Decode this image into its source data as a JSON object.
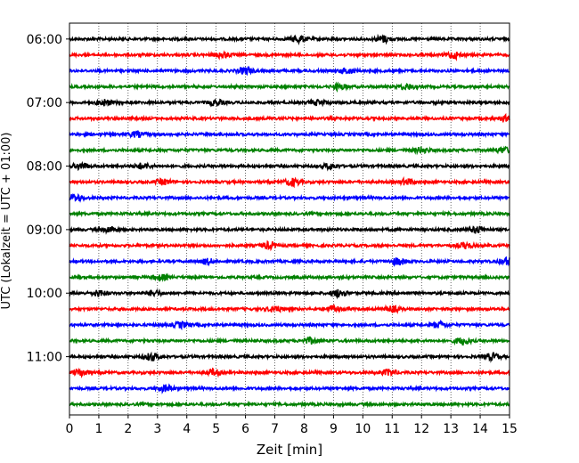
{
  "chart_data": {
    "type": "line",
    "title": "",
    "xlabel": "Zeit  [min]",
    "ylabel": "UTC (Lokalzeit = UTC + 01:00)",
    "xlim": [
      0,
      15
    ],
    "x_ticks": [
      0,
      1,
      2,
      3,
      4,
      5,
      6,
      7,
      8,
      9,
      10,
      11,
      12,
      13,
      14,
      15
    ],
    "y_ticks": [
      "06:00",
      "07:00",
      "08:00",
      "09:00",
      "10:00",
      "11:00"
    ],
    "ylim": [
      "05:45",
      "11:55"
    ],
    "grid": "vertical dotted at each minute",
    "trace_interval_min": 15,
    "trace_colors": [
      "#000000",
      "#ff0000",
      "#0000ff",
      "#008000"
    ],
    "traces": [
      {
        "start": "06:00",
        "color": "#000000",
        "events": [
          [
            7.8,
            1.6
          ],
          [
            10.7,
            1.5
          ]
        ]
      },
      {
        "start": "06:15",
        "color": "#ff0000",
        "events": [
          [
            5.2,
            1.3
          ],
          [
            13.1,
            1.6
          ]
        ]
      },
      {
        "start": "06:30",
        "color": "#0000ff",
        "events": [
          [
            6.0,
            1.5
          ],
          [
            9.5,
            1.2
          ]
        ]
      },
      {
        "start": "06:45",
        "color": "#008000",
        "events": [
          [
            9.2,
            1.3
          ],
          [
            11.5,
            1.3
          ]
        ]
      },
      {
        "start": "07:00",
        "color": "#000000",
        "events": [
          [
            1.2,
            1.4
          ],
          [
            5.0,
            1.3
          ],
          [
            8.5,
            1.2
          ]
        ]
      },
      {
        "start": "07:15",
        "color": "#ff0000",
        "events": [
          [
            14.9,
            1.2
          ]
        ]
      },
      {
        "start": "07:30",
        "color": "#0000ff",
        "events": [
          [
            2.3,
            1.3
          ]
        ]
      },
      {
        "start": "07:45",
        "color": "#008000",
        "events": [
          [
            12.0,
            1.3
          ],
          [
            14.8,
            1.2
          ]
        ]
      },
      {
        "start": "08:00",
        "color": "#000000",
        "events": [
          [
            0.4,
            1.5
          ],
          [
            2.5,
            1.3
          ],
          [
            8.9,
            1.3
          ]
        ]
      },
      {
        "start": "08:15",
        "color": "#ff0000",
        "events": [
          [
            7.6,
            1.7
          ],
          [
            3.2,
            1.2
          ],
          [
            11.5,
            1.3
          ]
        ]
      },
      {
        "start": "08:30",
        "color": "#0000ff",
        "events": [
          [
            0.2,
            1.6
          ]
        ]
      },
      {
        "start": "08:45",
        "color": "#008000",
        "events": []
      },
      {
        "start": "09:00",
        "color": "#000000",
        "events": [
          [
            1.4,
            1.3
          ],
          [
            13.9,
            1.6
          ]
        ]
      },
      {
        "start": "09:15",
        "color": "#ff0000",
        "events": [
          [
            6.8,
            1.5
          ],
          [
            13.5,
            1.3
          ]
        ]
      },
      {
        "start": "09:30",
        "color": "#0000ff",
        "events": [
          [
            11.2,
            1.5
          ],
          [
            14.9,
            1.6
          ],
          [
            4.7,
            1.2
          ]
        ]
      },
      {
        "start": "09:45",
        "color": "#008000",
        "events": [
          [
            3.1,
            1.2
          ]
        ]
      },
      {
        "start": "10:00",
        "color": "#000000",
        "events": [
          [
            1.0,
            1.4
          ],
          [
            9.2,
            1.7
          ],
          [
            2.9,
            1.2
          ]
        ]
      },
      {
        "start": "10:15",
        "color": "#ff0000",
        "events": [
          [
            7.0,
            1.3
          ],
          [
            9.0,
            1.5
          ],
          [
            11.0,
            1.3
          ]
        ]
      },
      {
        "start": "10:30",
        "color": "#0000ff",
        "events": [
          [
            3.8,
            1.3
          ],
          [
            12.6,
            1.3
          ]
        ]
      },
      {
        "start": "10:45",
        "color": "#008000",
        "events": [
          [
            13.4,
            1.6
          ],
          [
            8.2,
            1.3
          ]
        ]
      },
      {
        "start": "11:00",
        "color": "#000000",
        "events": [
          [
            2.8,
            1.7
          ],
          [
            14.4,
            1.5
          ]
        ]
      },
      {
        "start": "11:15",
        "color": "#ff0000",
        "events": [
          [
            0.4,
            1.6
          ],
          [
            4.9,
            1.4
          ],
          [
            10.9,
            1.4
          ]
        ]
      },
      {
        "start": "11:30",
        "color": "#0000ff",
        "events": [
          [
            3.3,
            1.5
          ]
        ]
      },
      {
        "start": "11:45",
        "color": "#008000",
        "events": []
      }
    ]
  }
}
